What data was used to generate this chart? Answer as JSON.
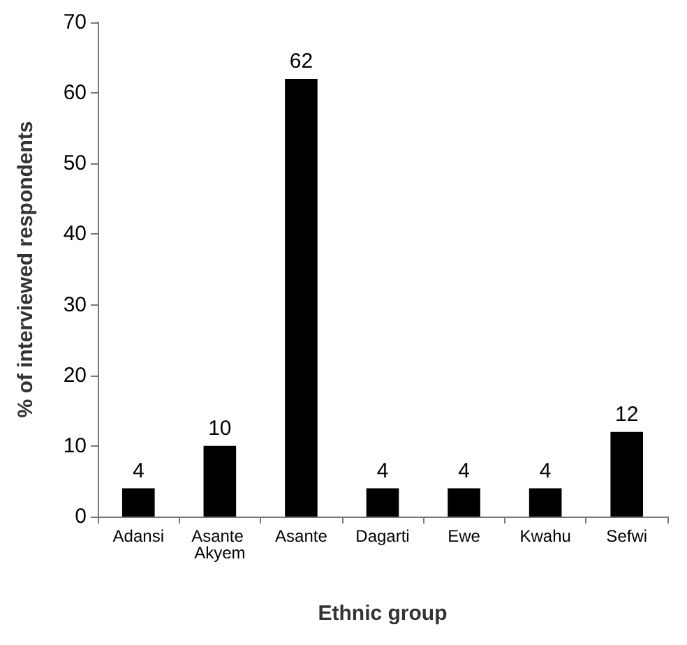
{
  "chart_data": {
    "type": "bar",
    "xlabel": "Ethnic group",
    "ylabel": "% of interviewed respondents",
    "categories": [
      "Adansi",
      "Asante Akyem",
      "Asante",
      "Dagarti",
      "Ewe",
      "Kwahu",
      "Sefwi"
    ],
    "values": [
      4,
      10,
      62,
      4,
      4,
      4,
      12
    ],
    "color": "#000000",
    "ylim": [
      0,
      70
    ],
    "yticks": [
      0,
      10,
      20,
      30,
      40,
      50,
      60,
      70
    ],
    "grid": false,
    "data_labels": true
  }
}
